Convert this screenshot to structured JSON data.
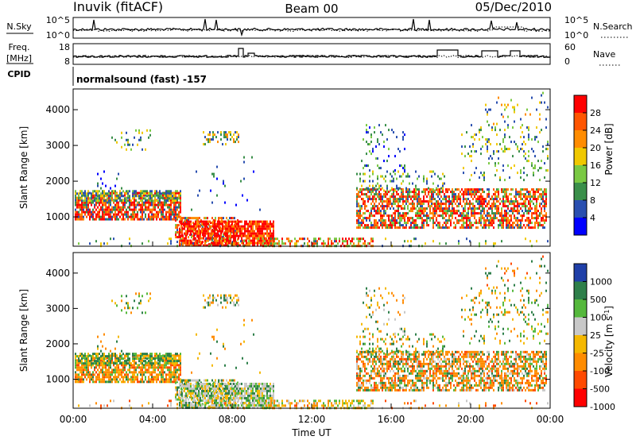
{
  "header": {
    "station": "Inuvik (fitACF)",
    "beam": "Beam 00",
    "date": "05/Dec/2010"
  },
  "strip_nsky": {
    "left_label": "N.Sky",
    "right_label": "N.Search",
    "left_ticks": [
      "10^5",
      "10^0"
    ],
    "right_ticks": [
      "10^5",
      "10^0"
    ]
  },
  "strip_freq": {
    "left_label_1": "Freq.",
    "left_label_2": "[MHz]",
    "right_label": "Nave",
    "left_ticks": [
      "18",
      "8"
    ],
    "right_ticks": [
      "60",
      "0"
    ]
  },
  "cpid": {
    "label": "CPID",
    "mode": "normalsound (fast) -157"
  },
  "chart_data": [
    {
      "type": "heatmap",
      "ylabel": "Slant Range [km]",
      "ylim": [
        180,
        4580
      ],
      "yticks": [
        "1000",
        "2000",
        "3000",
        "4000"
      ],
      "xticks": [
        "00:00",
        "04:00",
        "08:00",
        "12:00",
        "16:00",
        "20:00",
        "00:00"
      ],
      "colorbar": {
        "label": "Power [dB]",
        "ticks": [
          "28",
          "24",
          "20",
          "16",
          "12",
          "8",
          "4"
        ],
        "colors": [
          "#ff0000",
          "#ff5500",
          "#ff8c00",
          "#f0c800",
          "#7ac943",
          "#3a8f4a",
          "#2a4fb0",
          "#0000ff"
        ]
      }
    },
    {
      "type": "heatmap",
      "ylabel": "Slant Range [km]",
      "ylim": [
        180,
        4580
      ],
      "yticks": [
        "1000",
        "2000",
        "3000",
        "4000"
      ],
      "xticks": [
        "00:00",
        "04:00",
        "08:00",
        "12:00",
        "16:00",
        "20:00",
        "00:00"
      ],
      "xlabel": "Time UT",
      "colorbar": {
        "label": "Velocity [m s^-1]",
        "ticks": [
          "1000",
          "500",
          "100",
          "25",
          "-25",
          "-100",
          "-500",
          "-1000"
        ],
        "colors": [
          "#1f3fa8",
          "#2e7f4a",
          "#55b83c",
          "#c8c8c8",
          "#f5b800",
          "#ff8c00",
          "#ff4a00",
          "#ff0000"
        ]
      }
    }
  ],
  "colors": {
    "red": "#ff0000",
    "orange": "#ff7a00",
    "green": "#3a8f4a",
    "blue": "#2a4fb0",
    "gray": "#bdbdbd"
  }
}
